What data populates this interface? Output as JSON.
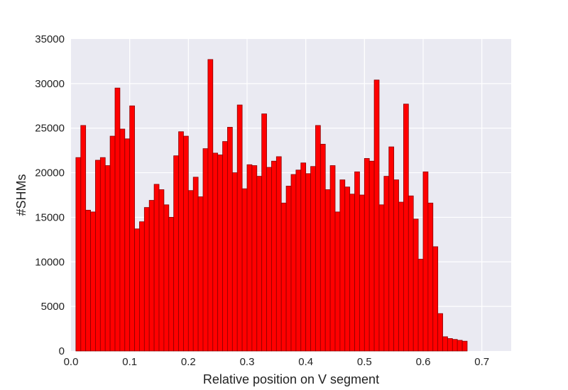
{
  "chart_data": {
    "type": "bar",
    "title": "",
    "xlabel": "Relative position on V segment",
    "ylabel": "#SHMs",
    "xlim": [
      0.0,
      0.75
    ],
    "ylim": [
      0,
      35000
    ],
    "grid": true,
    "legend": "none",
    "bar_color": "#ff0000",
    "bar_edge_color": "#8b0000",
    "background_color": "#eaeaf2",
    "grid_color": "#ffffff",
    "bin_width": 0.008333,
    "x_ticks": [
      "0.0",
      "0.1",
      "0.2",
      "0.3",
      "0.4",
      "0.5",
      "0.6",
      "0.7"
    ],
    "y_ticks": [
      "0",
      "5000",
      "10000",
      "15000",
      "20000",
      "25000",
      "30000",
      "35000"
    ],
    "bins_start": 0.008333,
    "values": [
      21700,
      25300,
      15800,
      15600,
      21400,
      21700,
      20800,
      24100,
      29500,
      24900,
      23800,
      27500,
      13700,
      14500,
      16100,
      16900,
      18700,
      18100,
      16400,
      15000,
      21900,
      24600,
      24100,
      18000,
      19500,
      17300,
      22700,
      32700,
      22200,
      22000,
      23500,
      25100,
      20000,
      27600,
      18200,
      20900,
      20800,
      19600,
      26600,
      20600,
      21300,
      21800,
      16600,
      18500,
      19800,
      20300,
      21100,
      19900,
      20700,
      25300,
      23200,
      18100,
      20800,
      15600,
      19200,
      18400,
      17600,
      20100,
      17500,
      21600,
      21300,
      30400,
      16400,
      19600,
      22900,
      19200,
      16700,
      27700,
      17400,
      14800,
      10300,
      20100,
      16600,
      11700,
      4200,
      1600,
      1400,
      1300,
      1200,
      1100
    ]
  }
}
